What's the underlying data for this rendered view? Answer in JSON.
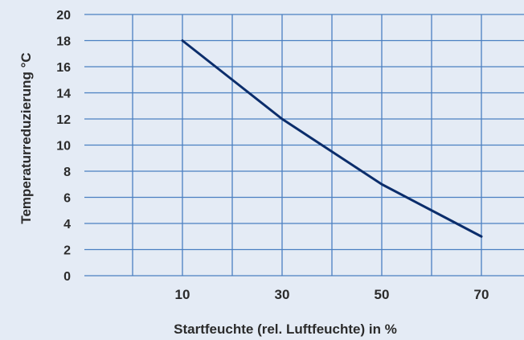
{
  "chart_data": {
    "type": "line",
    "title": "",
    "xlabel": "Startfeuchte (rel. Luftfeuchte) in %",
    "ylabel": "Temperaturreduzierung °C",
    "xlim": [
      0,
      90
    ],
    "ylim": [
      0,
      20
    ],
    "x_ticks": [
      10,
      30,
      50,
      70
    ],
    "x_gridlines": [
      0,
      10,
      20,
      30,
      40,
      50,
      60,
      70,
      80,
      90
    ],
    "y_ticks": [
      0,
      2,
      4,
      6,
      8,
      10,
      12,
      14,
      16,
      18,
      20
    ],
    "grid": true,
    "legend": "none",
    "series": [
      {
        "x": [
          10,
          20,
          30,
          40,
          50,
          60,
          70
        ],
        "values": [
          18,
          15,
          12,
          9.5,
          7,
          5,
          3
        ]
      }
    ],
    "colors": {
      "background": "#e4ebf5",
      "grid": "#4a7fc1",
      "line": "#0b2d6b",
      "text": "#2b2b2b"
    }
  }
}
